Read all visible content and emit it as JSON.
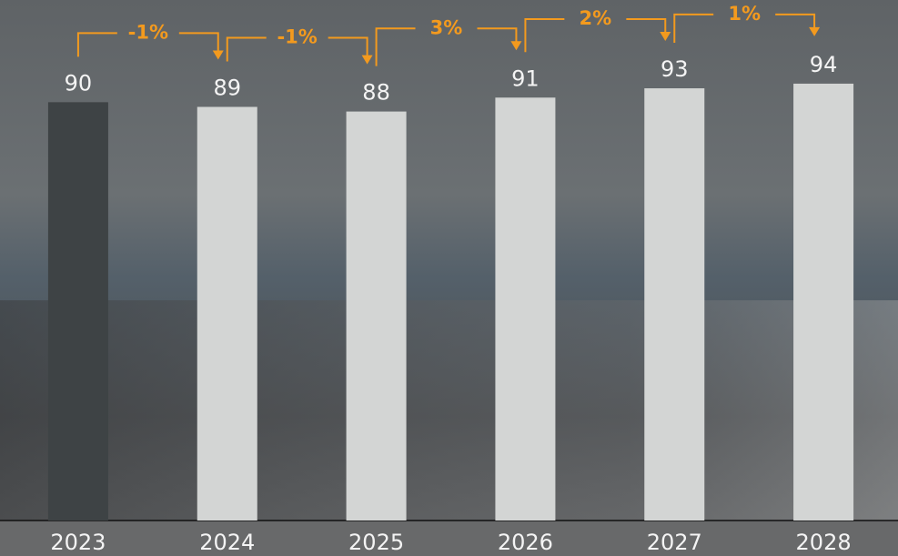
{
  "chart_data": {
    "type": "bar",
    "categories": [
      "2023",
      "2024",
      "2025",
      "2026",
      "2027",
      "2028"
    ],
    "values": [
      90,
      89,
      88,
      91,
      93,
      94
    ],
    "colors": [
      "#3e4345",
      "#d3d5d4",
      "#d3d5d4",
      "#d3d5d4",
      "#d3d5d4",
      "#d3d5d4"
    ],
    "ylim": [
      0,
      112
    ],
    "change_labels": [
      "-1%",
      "-1%",
      "3%",
      "2%",
      "1%"
    ],
    "change_color": "#f39a1e"
  }
}
